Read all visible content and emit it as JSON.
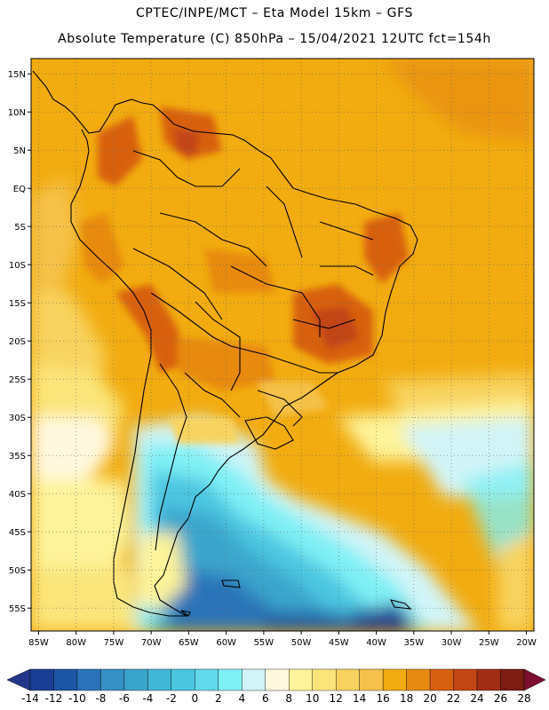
{
  "header": {
    "line1": "CPTEC/INPE/MCT –  Eta Model 15km – GFS",
    "line2": "Absolute Temperature (C) 850hPa – 15/04/2021 12UTC fct=154h"
  },
  "map": {
    "lon_range": [
      -86,
      -19
    ],
    "lat_range": [
      -58,
      17
    ],
    "lat_ticks": [
      {
        "value": 15,
        "label": "15N"
      },
      {
        "value": 10,
        "label": "10N"
      },
      {
        "value": 5,
        "label": "5N"
      },
      {
        "value": 0,
        "label": "EQ"
      },
      {
        "value": -5,
        "label": "5S"
      },
      {
        "value": -10,
        "label": "10S"
      },
      {
        "value": -15,
        "label": "15S"
      },
      {
        "value": -20,
        "label": "20S"
      },
      {
        "value": -25,
        "label": "25S"
      },
      {
        "value": -30,
        "label": "30S"
      },
      {
        "value": -35,
        "label": "35S"
      },
      {
        "value": -40,
        "label": "40S"
      },
      {
        "value": -45,
        "label": "45S"
      },
      {
        "value": -50,
        "label": "50S"
      },
      {
        "value": -55,
        "label": "55S"
      }
    ],
    "lon_ticks": [
      {
        "value": -85,
        "label": "85W"
      },
      {
        "value": -80,
        "label": "80W"
      },
      {
        "value": -75,
        "label": "75W"
      },
      {
        "value": -70,
        "label": "70W"
      },
      {
        "value": -65,
        "label": "65W"
      },
      {
        "value": -60,
        "label": "60W"
      },
      {
        "value": -55,
        "label": "55W"
      },
      {
        "value": -50,
        "label": "50W"
      },
      {
        "value": -45,
        "label": "45W"
      },
      {
        "value": -40,
        "label": "40W"
      },
      {
        "value": -35,
        "label": "35W"
      },
      {
        "value": -30,
        "label": "30W"
      },
      {
        "value": -25,
        "label": "25W"
      },
      {
        "value": -20,
        "label": "20W"
      }
    ],
    "grid": "dotted",
    "background_color": "#f2ac10",
    "coastline_color": "#000000"
  },
  "colorbar": {
    "labels": [
      "-14",
      "-12",
      "-10",
      "-8",
      "-6",
      "-4",
      "-2",
      "0",
      "2",
      "4",
      "6",
      "8",
      "10",
      "12",
      "14",
      "16",
      "18",
      "20",
      "22",
      "24",
      "26",
      "28"
    ],
    "colors": [
      "#1a3e94",
      "#1e56a6",
      "#2a73b8",
      "#3591c6",
      "#3aa5cc",
      "#40b6d6",
      "#4bc6e1",
      "#63daeb",
      "#7ff0f5",
      "#d1f4f8",
      "#fff8df",
      "#fdf39a",
      "#fbe57a",
      "#f8d35f",
      "#f5c14a",
      "#f2ac10",
      "#e78a11",
      "#d86011",
      "#c24514",
      "#a12e14",
      "#7c1c12"
    ],
    "end_low_color": "#223689",
    "end_high_color": "#7c0f2e"
  }
}
